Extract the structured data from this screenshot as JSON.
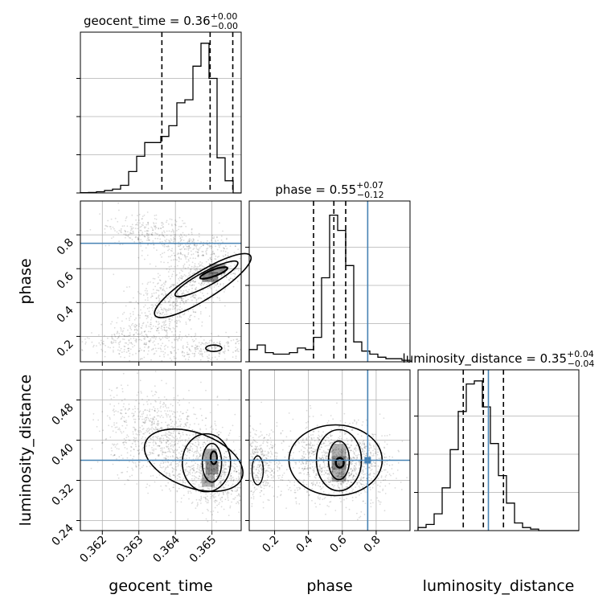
{
  "chart_data": {
    "type": "corner",
    "parameters": [
      "geocent_time",
      "phase",
      "luminosity_distance"
    ],
    "axis_labels": [
      "geocent_time",
      "phase",
      "luminosity_distance"
    ],
    "ranges": [
      [
        0.3614,
        0.3658
      ],
      [
        0.05,
        1.0
      ],
      [
        0.22,
        0.54
      ]
    ],
    "ticks": [
      {
        "values": [
          0.362,
          0.363,
          0.364,
          0.365
        ],
        "labels": [
          "0.362",
          "0.363",
          "0.364",
          "0.365"
        ]
      },
      {
        "values": [
          0.2,
          0.4,
          0.6,
          0.8
        ],
        "labels": [
          "0.2",
          "0.4",
          "0.6",
          "0.8"
        ]
      },
      {
        "values": [
          0.24,
          0.32,
          0.4,
          0.48
        ],
        "labels": [
          "0.24",
          "0.32",
          "0.40",
          "0.48"
        ]
      }
    ],
    "titles": [
      {
        "name": "geocent_time",
        "median": "0.36",
        "plus": "+0.00",
        "minus": "−0.00"
      },
      {
        "name": "phase",
        "median": "0.55",
        "plus": "+0.07",
        "minus": "−0.12"
      },
      {
        "name": "luminosity_distance",
        "median": "0.35",
        "plus": "+0.04",
        "minus": "−0.04"
      }
    ],
    "quantiles": [
      [
        0.36363,
        0.36495,
        0.36557
      ],
      [
        0.43,
        0.55,
        0.62
      ],
      [
        0.31,
        0.35,
        0.39
      ]
    ],
    "truths": [
      null,
      0.75,
      0.36
    ],
    "truth_color": "#4682b4",
    "histograms": [
      {
        "edges": [
          0.3614,
          0.3658
        ],
        "counts": [
          0.002,
          0.003,
          0.008,
          0.016,
          0.025,
          0.05,
          0.14,
          0.24,
          0.33,
          0.33,
          0.37,
          0.44,
          0.59,
          0.61,
          0.83,
          0.98,
          0.75,
          0.23,
          0.08,
          0.0
        ]
      },
      {
        "edges": [
          0.05,
          1.0
        ],
        "counts": [
          0.08,
          0.11,
          0.06,
          0.05,
          0.05,
          0.06,
          0.09,
          0.08,
          0.16,
          0.55,
          0.96,
          0.86,
          0.63,
          0.13,
          0.07,
          0.05,
          0.03,
          0.02,
          0.02,
          0.01
        ]
      },
      {
        "edges": [
          0.22,
          0.54
        ],
        "counts": [
          0.02,
          0.04,
          0.11,
          0.28,
          0.53,
          0.78,
          0.96,
          0.98,
          0.81,
          0.57,
          0.36,
          0.18,
          0.05,
          0.02,
          0.01,
          0.0,
          0.0,
          0.0,
          0.0,
          0.0
        ]
      }
    ],
    "contour_color": "#000000",
    "density_color": "#000000"
  }
}
